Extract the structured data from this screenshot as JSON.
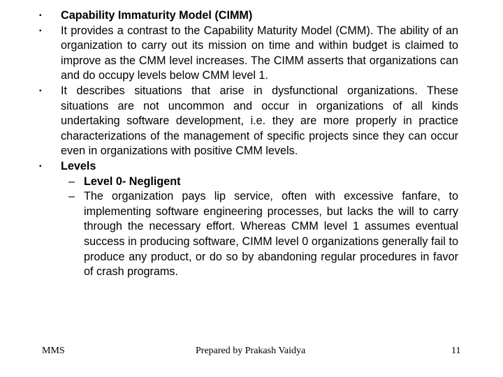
{
  "bullets": [
    {
      "marker": "•",
      "text": "Capability Immaturity Model (CIMM)"
    },
    {
      "marker": "•",
      "text": "It provides a contrast to the Capability Maturity Model (CMM). The ability of an organization to carry out its mission on time and within budget is claimed to improve as the CMM level increases. The CIMM asserts that organizations can and do occupy levels below CMM level 1."
    },
    {
      "marker": "•",
      "text": "It describes situations that arise in dysfunctional organizations. These situations are not uncommon and occur in organizations of all kinds undertaking software development, i.e. they are more properly in practice characterizations of the management of specific projects since they can occur even in organizations with positive CMM levels."
    },
    {
      "marker": "•",
      "text": "Levels"
    }
  ],
  "sub_items": [
    {
      "marker": "–",
      "text": "Level 0- Negligent"
    },
    {
      "marker": "–",
      "text": "The organization pays lip service, often with excessive fanfare, to implementing software engineering processes, but lacks the will to carry through the necessary effort. Whereas CMM level 1 assumes eventual success in producing software, CIMM level 0 organizations generally fail to produce any product, or do so by abandoning regular procedures in favor of crash programs."
    }
  ],
  "footer": {
    "left": "MMS",
    "center": "Prepared by Prakash Vaidya",
    "page_number": "11"
  }
}
